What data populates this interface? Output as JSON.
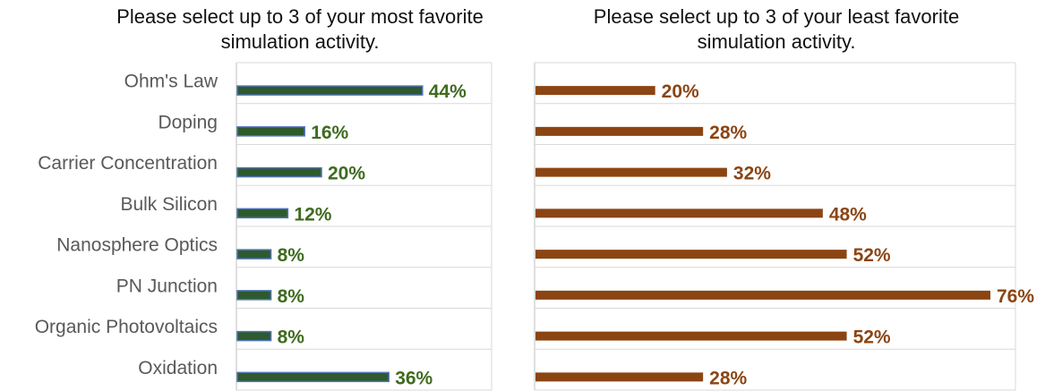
{
  "chart_data": [
    {
      "type": "bar",
      "orientation": "horizontal",
      "title": "Please select up to 3 of your most favorite simulation activity.",
      "title_lines": [
        "Please select up to 3 of your most favorite",
        "simulation activity."
      ],
      "categories": [
        "Ohm's Law",
        "Doping",
        "Carrier Concentration",
        "Bulk Silicon",
        "Nanosphere Optics",
        "PN Junction",
        "Organic Photovoltaics",
        "Oxidation"
      ],
      "values": [
        44,
        16,
        20,
        12,
        8,
        8,
        8,
        36
      ],
      "value_labels": [
        "44%",
        "16%",
        "20%",
        "12%",
        "8%",
        "8%",
        "8%",
        "36%"
      ],
      "unit": "%",
      "xlim": [
        0,
        100
      ],
      "grid": true,
      "colors": {
        "bar_fill": "#2e5a2e",
        "bar_edge": "#4f73b8",
        "label": "#3e6b1f"
      }
    },
    {
      "type": "bar",
      "orientation": "horizontal",
      "title": "Please select up to 3 of your least favorite simulation activity.",
      "title_lines": [
        "Please select up to 3 of your least favorite",
        "simulation activity."
      ],
      "categories": [
        "Ohm's Law",
        "Doping",
        "Carrier Concentration",
        "Bulk Silicon",
        "Nanosphere Optics",
        "PN Junction",
        "Organic Photovoltaics",
        "Oxidation"
      ],
      "values": [
        20,
        28,
        32,
        48,
        52,
        76,
        52,
        28
      ],
      "value_labels": [
        "20%",
        "28%",
        "32%",
        "48%",
        "52%",
        "76%",
        "52%",
        "28%"
      ],
      "unit": "%",
      "xlim": [
        0,
        76
      ],
      "grid": true,
      "colors": {
        "bar_fill": "#8b4513",
        "bar_edge": "#8b4513",
        "label": "#8b4513"
      }
    }
  ]
}
